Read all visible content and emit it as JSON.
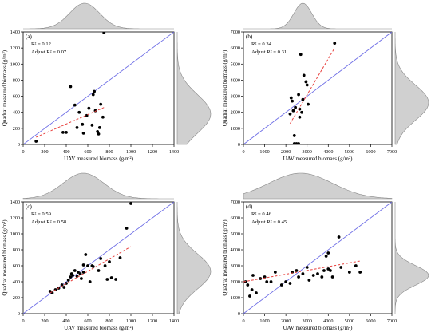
{
  "chart_data": [
    {
      "type": "scatter",
      "panel_label": "(a)",
      "r2_text": "R² = 0.12",
      "adj_r2_text": "Adjust R² = 0.07",
      "xlabel": "UAV measured biomass (g/m²)",
      "ylabel": "Quadrat measured biomass (g/m²)",
      "xlim": [
        0,
        1400
      ],
      "ylim": [
        0,
        1400
      ],
      "xticks": [
        0,
        200,
        400,
        600,
        800,
        1000,
        1200,
        1400
      ],
      "yticks": [
        0,
        200,
        400,
        600,
        800,
        1000,
        1200,
        1400
      ],
      "points": [
        [
          120,
          40
        ],
        [
          370,
          150
        ],
        [
          400,
          150
        ],
        [
          440,
          720
        ],
        [
          480,
          490
        ],
        [
          500,
          210
        ],
        [
          520,
          400
        ],
        [
          550,
          250
        ],
        [
          560,
          140
        ],
        [
          590,
          360
        ],
        [
          610,
          450
        ],
        [
          640,
          240
        ],
        [
          650,
          620
        ],
        [
          660,
          660
        ],
        [
          670,
          420
        ],
        [
          690,
          160
        ],
        [
          700,
          130
        ],
        [
          710,
          210
        ],
        [
          720,
          500
        ],
        [
          740,
          340
        ],
        [
          750,
          1390
        ]
      ],
      "identity_line": [
        [
          0,
          0
        ],
        [
          1400,
          1400
        ]
      ],
      "fit_line": [
        [
          120,
          90
        ],
        [
          750,
          460
        ]
      ],
      "marginal_top": {
        "peak": 570,
        "spread": 140
      },
      "marginal_right": {
        "peak": 380,
        "spread": 240
      }
    },
    {
      "type": "scatter",
      "panel_label": "(b)",
      "r2_text": "R² = 0.34",
      "adj_r2_text": "Adjust R² = 0.31",
      "xlabel": "UAV measured biomass (g/m²)",
      "ylabel": "Quadrat measured biomass (g/m²)",
      "xlim": [
        0,
        7000
      ],
      "ylim": [
        0,
        7000
      ],
      "xticks": [
        0,
        1000,
        2000,
        3000,
        4000,
        5000,
        6000,
        7000
      ],
      "yticks": [
        0,
        1000,
        2000,
        3000,
        4000,
        5000,
        6000,
        7000
      ],
      "points": [
        [
          2200,
          1900
        ],
        [
          2250,
          2900
        ],
        [
          2300,
          2700
        ],
        [
          2350,
          2100
        ],
        [
          2400,
          550
        ],
        [
          2400,
          50
        ],
        [
          2450,
          2300
        ],
        [
          2500,
          50
        ],
        [
          2600,
          3100
        ],
        [
          2650,
          1700
        ],
        [
          2650,
          2200
        ],
        [
          2700,
          5600
        ],
        [
          2750,
          2000
        ],
        [
          2800,
          2800
        ],
        [
          2850,
          4300
        ],
        [
          2950,
          3900
        ],
        [
          3000,
          3700
        ],
        [
          3050,
          2500
        ],
        [
          4300,
          6300
        ],
        [
          2600,
          50
        ]
      ],
      "identity_line": [
        [
          0,
          0
        ],
        [
          7000,
          7000
        ]
      ],
      "fit_line": [
        [
          2200,
          1300
        ],
        [
          4300,
          6000
        ]
      ],
      "marginal_top": {
        "peak": 2800,
        "spread": 420
      },
      "marginal_right": {
        "peak": 2600,
        "spread": 1100
      }
    },
    {
      "type": "scatter",
      "panel_label": "(c)",
      "r2_text": "R² = 0.59",
      "adj_r2_text": "Adjust R² = 0.58",
      "xlabel": "UAV measured biomass (g/m²)",
      "ylabel": "Quadrat measured biomass (g/m²)",
      "xlim": [
        0,
        1400
      ],
      "ylim": [
        0,
        1400
      ],
      "xticks": [
        0,
        200,
        400,
        600,
        800,
        1000,
        1200,
        1400
      ],
      "yticks": [
        0,
        200,
        400,
        600,
        800,
        1000,
        1200,
        1400
      ],
      "points": [
        [
          250,
          280
        ],
        [
          270,
          260
        ],
        [
          300,
          300
        ],
        [
          330,
          320
        ],
        [
          360,
          360
        ],
        [
          380,
          330
        ],
        [
          400,
          380
        ],
        [
          420,
          420
        ],
        [
          440,
          460
        ],
        [
          450,
          500
        ],
        [
          460,
          480
        ],
        [
          480,
          540
        ],
        [
          500,
          470
        ],
        [
          510,
          520
        ],
        [
          530,
          500
        ],
        [
          540,
          440
        ],
        [
          560,
          520
        ],
        [
          560,
          610
        ],
        [
          580,
          740
        ],
        [
          600,
          600
        ],
        [
          640,
          600
        ],
        [
          650,
          590
        ],
        [
          700,
          540
        ],
        [
          720,
          690
        ],
        [
          760,
          600
        ],
        [
          780,
          430
        ],
        [
          800,
          650
        ],
        [
          820,
          450
        ],
        [
          860,
          430
        ],
        [
          900,
          700
        ],
        [
          960,
          1070
        ],
        [
          1000,
          1380
        ],
        [
          620,
          400
        ]
      ],
      "identity_line": [
        [
          0,
          0
        ],
        [
          1400,
          1400
        ]
      ],
      "fit_line": [
        [
          250,
          260
        ],
        [
          1000,
          840
        ]
      ],
      "marginal_top": {
        "peak": 560,
        "spread": 190
      },
      "marginal_right": {
        "peak": 530,
        "spread": 220
      }
    },
    {
      "type": "scatter",
      "panel_label": "(d)",
      "r2_text": "R² = 0.46",
      "adj_r2_text": "Adjust R² = 0.45",
      "xlabel": "UAV measured biomass (g/m²)",
      "ylabel": "Quadrat measured biomass (g/m²)",
      "xlim": [
        0,
        7000
      ],
      "ylim": [
        0,
        7000
      ],
      "xticks": [
        0,
        1000,
        2000,
        3000,
        4000,
        5000,
        6000,
        7000
      ],
      "yticks": [
        0,
        1000,
        2000,
        3000,
        4000,
        5000,
        6000,
        7000
      ],
      "points": [
        [
          100,
          2000
        ],
        [
          200,
          1800
        ],
        [
          300,
          1100
        ],
        [
          400,
          1500
        ],
        [
          450,
          2400
        ],
        [
          600,
          1300
        ],
        [
          800,
          2200
        ],
        [
          1000,
          2300
        ],
        [
          1100,
          2000
        ],
        [
          1300,
          2000
        ],
        [
          1500,
          2600
        ],
        [
          1800,
          1800
        ],
        [
          2000,
          2000
        ],
        [
          2200,
          1900
        ],
        [
          2300,
          2600
        ],
        [
          2500,
          2700
        ],
        [
          2600,
          2300
        ],
        [
          2800,
          2500
        ],
        [
          3000,
          2900
        ],
        [
          3100,
          2100
        ],
        [
          3300,
          2400
        ],
        [
          3500,
          2500
        ],
        [
          3700,
          2300
        ],
        [
          3800,
          2700
        ],
        [
          4000,
          2800
        ],
        [
          4000,
          3800
        ],
        [
          4100,
          2700
        ],
        [
          4200,
          2300
        ],
        [
          4500,
          4800
        ],
        [
          4600,
          2900
        ],
        [
          5000,
          2600
        ],
        [
          5300,
          3000
        ],
        [
          5500,
          2600
        ],
        [
          3900,
          3600
        ]
      ],
      "identity_line": [
        [
          0,
          0
        ],
        [
          7000,
          7000
        ]
      ],
      "fit_line": [
        [
          0,
          2000
        ],
        [
          5500,
          3300
        ]
      ],
      "marginal_top": {
        "peak": 2700,
        "spread": 1500
      },
      "marginal_right": {
        "peak": 2400,
        "spread": 620
      }
    }
  ]
}
